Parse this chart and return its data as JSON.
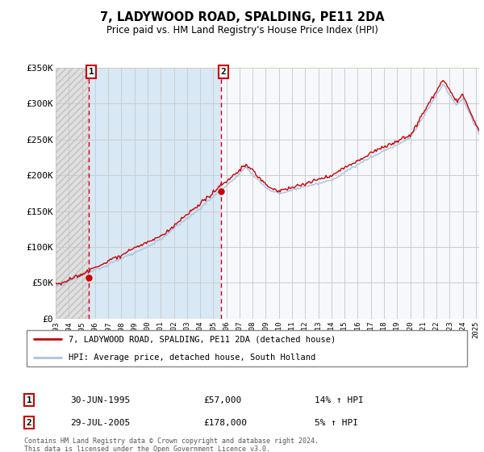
{
  "title": "7, LADYWOOD ROAD, SPALDING, PE11 2DA",
  "subtitle": "Price paid vs. HM Land Registry's House Price Index (HPI)",
  "ylim": [
    0,
    350000
  ],
  "yticks": [
    0,
    50000,
    100000,
    150000,
    200000,
    250000,
    300000,
    350000
  ],
  "ytick_labels": [
    "£0",
    "£50K",
    "£100K",
    "£150K",
    "£200K",
    "£250K",
    "£300K",
    "£350K"
  ],
  "sale1_year": 1995.5,
  "sale1_price": 57000,
  "sale1_label": "30-JUN-1995",
  "sale1_pct": "14%",
  "sale2_year": 2005.58,
  "sale2_price": 178000,
  "sale2_label": "29-JUL-2005",
  "sale2_pct": "5%",
  "legend_line1": "7, LADYWOOD ROAD, SPALDING, PE11 2DA (detached house)",
  "legend_line2": "HPI: Average price, detached house, South Holland",
  "footer": "Contains HM Land Registry data © Crown copyright and database right 2024.\nThis data is licensed under the Open Government Licence v3.0.",
  "hpi_color": "#a8c4e0",
  "price_color": "#cc0000",
  "grid_color": "#cccccc",
  "xmin": 1993.0,
  "xmax": 2025.25
}
